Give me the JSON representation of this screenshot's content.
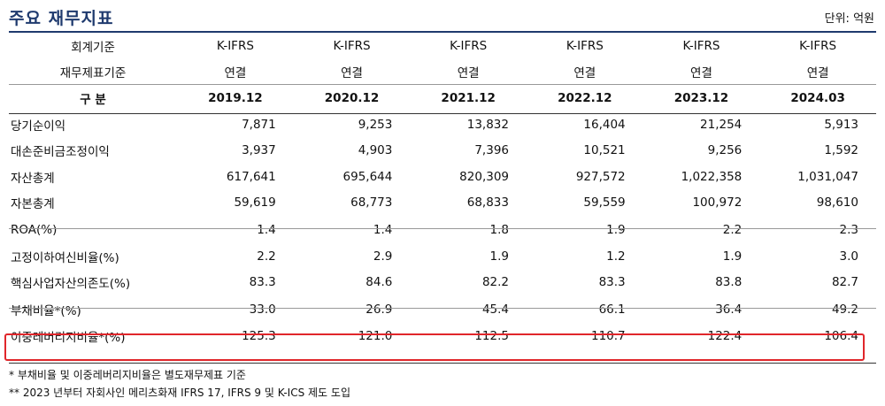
{
  "title": "주요 재무지표",
  "unit": "단위: 억원",
  "header": {
    "row1_label": "회계기준",
    "row2_label": "재무제표기준",
    "row3_label": "구 분",
    "standards": [
      "K-IFRS",
      "K-IFRS",
      "K-IFRS",
      "K-IFRS",
      "K-IFRS",
      "K-IFRS"
    ],
    "bases": [
      "연결",
      "연결",
      "연결",
      "연결",
      "연결",
      "연결"
    ],
    "periods": [
      "2019.12",
      "2020.12",
      "2021.12",
      "2022.12",
      "2023.12",
      "2024.03"
    ]
  },
  "rows": [
    {
      "label": "당기순이익",
      "values": [
        "7,871",
        "9,253",
        "13,832",
        "16,404",
        "21,254",
        "5,913"
      ]
    },
    {
      "label": "대손준비금조정이익",
      "values": [
        "3,937",
        "4,903",
        "7,396",
        "10,521",
        "9,256",
        "1,592"
      ]
    },
    {
      "label": "자산총계",
      "values": [
        "617,641",
        "695,644",
        "820,309",
        "927,572",
        "1,022,358",
        "1,031,047"
      ]
    },
    {
      "label": "자본총계",
      "values": [
        "59,619",
        "68,773",
        "68,833",
        "59,559",
        "100,972",
        "98,610"
      ]
    },
    {
      "label": "ROA(%)",
      "values": [
        "1.4",
        "1.4",
        "1.8",
        "1.9",
        "2.2",
        "2.3"
      ]
    },
    {
      "label": "고정이하여신비율(%)",
      "values": [
        "2.2",
        "2.9",
        "1.9",
        "1.2",
        "1.9",
        "3.0"
      ]
    },
    {
      "label": "핵심사업자산의존도(%)",
      "values": [
        "83.3",
        "84.6",
        "82.2",
        "83.3",
        "83.8",
        "82.7"
      ]
    },
    {
      "label": "부채비율*(%)",
      "values": [
        "33.0",
        "26.9",
        "45.4",
        "66.1",
        "36.4",
        "49.2"
      ]
    },
    {
      "label": "이중레버리지비율*(%)",
      "values": [
        "125.3",
        "121.0",
        "112.5",
        "110.7",
        "122.4",
        "106.4"
      ]
    }
  ],
  "notes": [
    "* 부채비율 및 이중레버리지비율은 별도재무제표 기준",
    "** 2023 년부터 자회사인 메리츠화재 IFRS 17, IFRS 9 및 K-ICS 제도 도입"
  ]
}
